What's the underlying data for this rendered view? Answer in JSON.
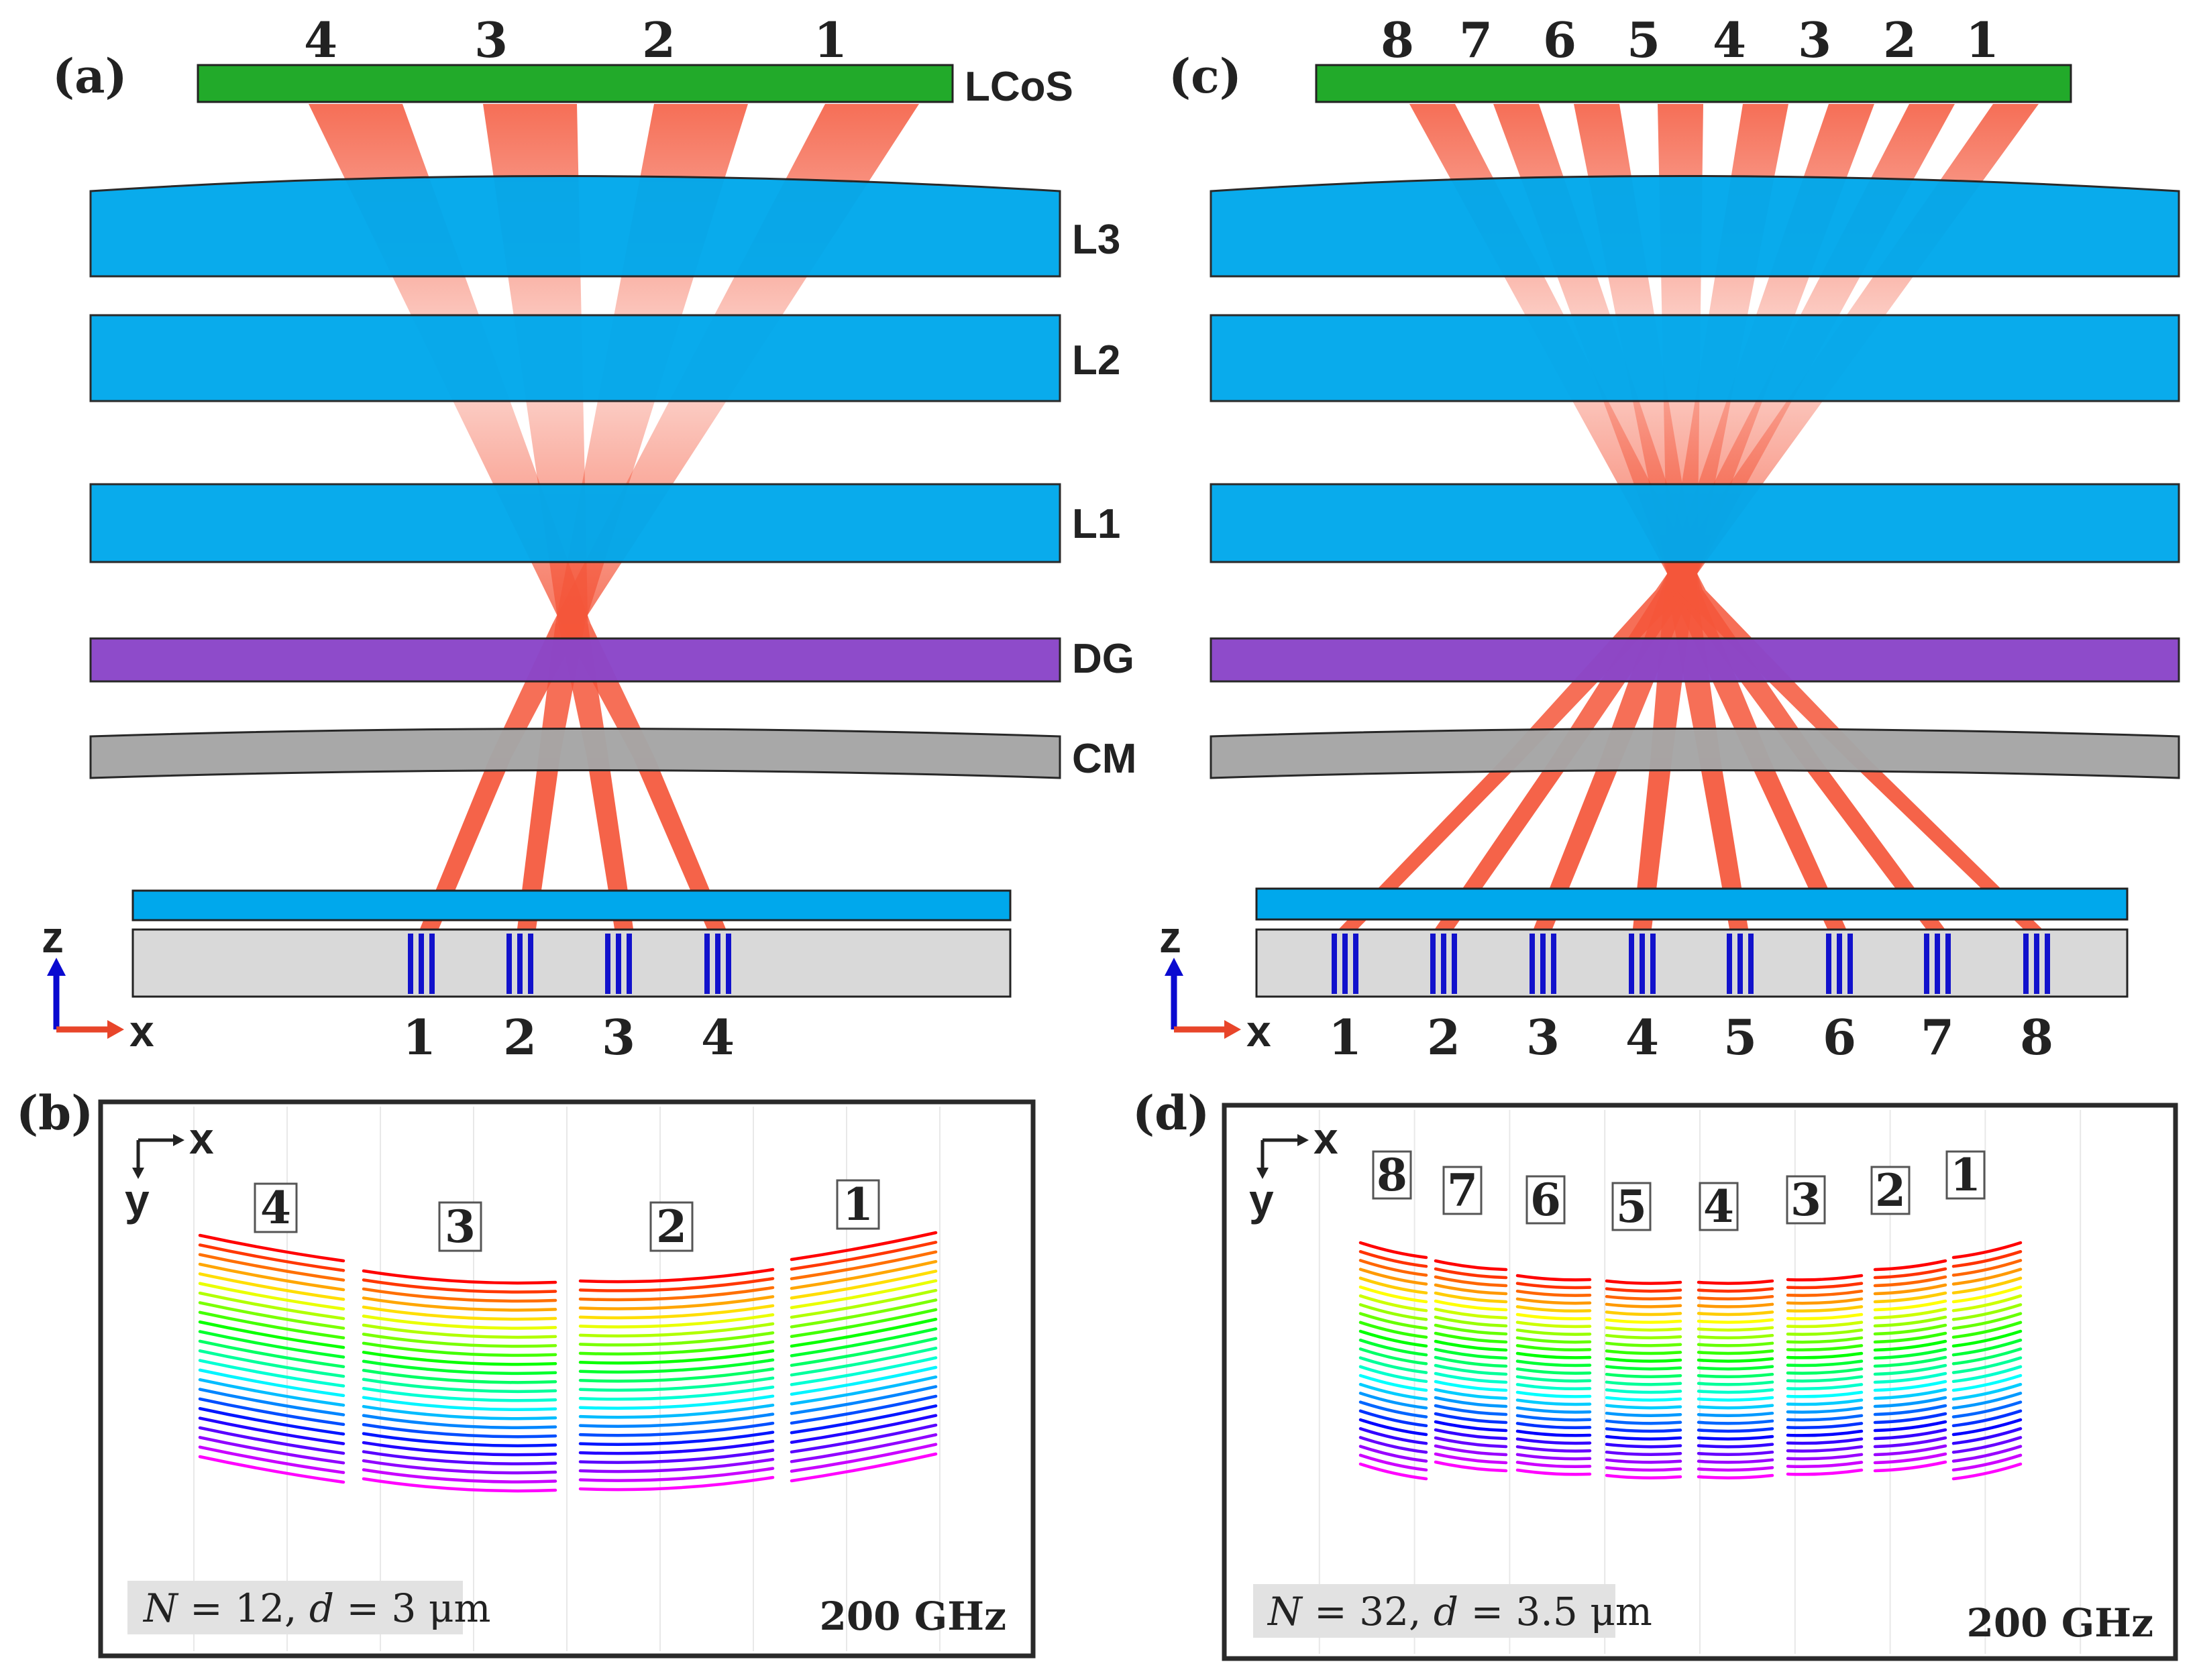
{
  "panel_a": {
    "label": "(a)",
    "top_numbers": [
      "4",
      "3",
      "2",
      "1"
    ],
    "components": {
      "lcos": "LCoS",
      "l3": "L3",
      "l2": "L2",
      "l1": "L1",
      "dg": "DG",
      "cm": "CM"
    },
    "bottom_numbers": [
      "1",
      "2",
      "3",
      "4"
    ],
    "axis_z": "z",
    "axis_x": "x"
  },
  "panel_c": {
    "label": "(c)",
    "top_numbers": [
      "8",
      "7",
      "6",
      "5",
      "4",
      "3",
      "2",
      "1"
    ],
    "bottom_numbers": [
      "1",
      "2",
      "3",
      "4",
      "5",
      "6",
      "7",
      "8"
    ],
    "axis_z": "z",
    "axis_x": "x"
  },
  "panel_b": {
    "label": "(b)",
    "axis_x": "x",
    "axis_y": "y",
    "group_labels": [
      "4",
      "3",
      "2",
      "1"
    ],
    "param_text": "N = 12, d = 3 μm",
    "param_N": "N",
    "param_N_val": " = 12, ",
    "param_d": "d",
    "param_d_val": " = 3 μm",
    "frequency": "200 GHz"
  },
  "panel_d": {
    "label": "(d)",
    "axis_x": "x",
    "axis_y": "y",
    "group_labels": [
      "8",
      "7",
      "6",
      "5",
      "4",
      "3",
      "2",
      "1"
    ],
    "param_text": "N = 32, d = 3.5 μm",
    "param_N": "N",
    "param_N_val": " = 32, ",
    "param_d": "d",
    "param_d_val": " = 3.5 μm",
    "frequency": "200 GHz"
  },
  "colors": {
    "lcos": "#22aa2a",
    "lens": "#00a8ec",
    "grating": "#8b46c9",
    "mirror": "#a6a6a6",
    "chip": "#d9d9d9",
    "waveguide": "#1212cc",
    "beam": "#f4563a",
    "axis_z": "#0a0ad0",
    "axis_x": "#e8452a"
  }
}
